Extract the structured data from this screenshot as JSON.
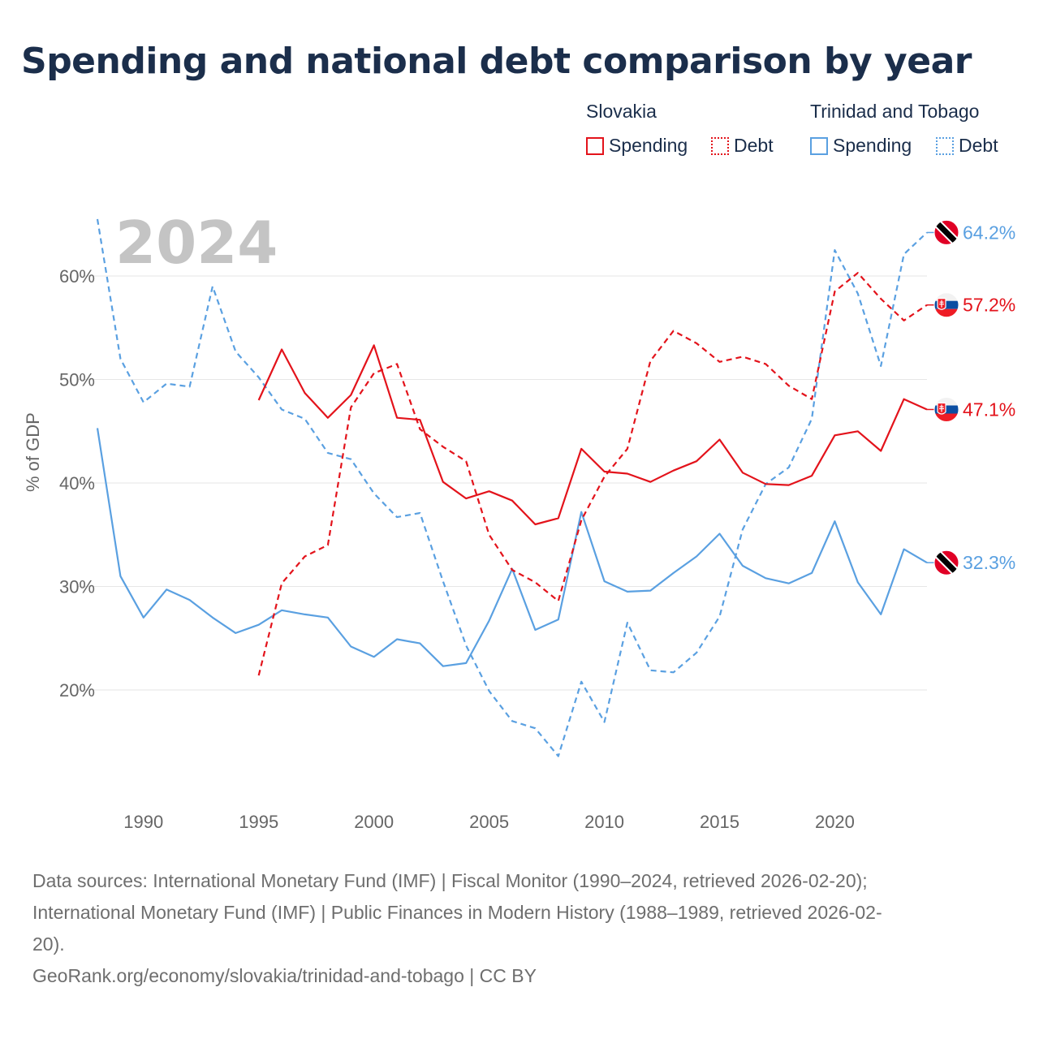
{
  "title": "Spending and national debt comparison by year",
  "legend": {
    "groups": [
      {
        "country": "Slovakia",
        "spending_label": "Spending",
        "debt_label": "Debt"
      },
      {
        "country": "Trinidad and Tobago",
        "spending_label": "Spending",
        "debt_label": "Debt"
      }
    ]
  },
  "colors": {
    "slovakia": "#e3131b",
    "trinidad": "#5aa0e1",
    "grid": "#e6e6e6",
    "year_label": "#c4c4c4",
    "axis_text": "#666666"
  },
  "sources": {
    "line1": "Data sources: International Monetary Fund (IMF) | Fiscal Monitor (1990–2024, retrieved 2026-02-20);",
    "line2": "International Monetary Fund (IMF) | Public Finances in Modern History (1988–1989, retrieved 2026-02-",
    "line3": "20).",
    "credit": "GeoRank.org/economy/slovakia/trinidad-and-tobago | CC BY"
  },
  "chart_data": {
    "type": "line",
    "year_label": "2024",
    "ylabel": "% of GDP",
    "x_ticks": [
      1990,
      1995,
      2000,
      2005,
      2010,
      2015,
      2020
    ],
    "y_ticks": [
      20,
      30,
      40,
      50,
      60
    ],
    "y_tick_labels": [
      "20%",
      "30%",
      "40%",
      "50%",
      "60%"
    ],
    "xlim": [
      1988,
      2024
    ],
    "ylim": [
      10,
      67
    ],
    "series": [
      {
        "name": "Trinidad and Tobago Spending",
        "country": "trinidad",
        "style": "solid",
        "end_label": "32.3%",
        "flag": "trinidad-and-tobago-flag",
        "x": [
          1988,
          1989,
          1990,
          1991,
          1992,
          1993,
          1994,
          1995,
          1996,
          1997,
          1998,
          1999,
          2000,
          2001,
          2002,
          2003,
          2004,
          2005,
          2006,
          2007,
          2008,
          2009,
          2010,
          2011,
          2012,
          2013,
          2014,
          2015,
          2016,
          2017,
          2018,
          2019,
          2020,
          2021,
          2022,
          2023,
          2024
        ],
        "values": [
          45.3,
          31.0,
          27.0,
          29.7,
          28.7,
          27.0,
          25.5,
          26.3,
          27.7,
          27.3,
          27.0,
          24.2,
          23.2,
          24.9,
          24.5,
          22.3,
          22.6,
          26.7,
          31.7,
          25.8,
          26.8,
          37.2,
          30.5,
          29.5,
          29.6,
          31.3,
          32.9,
          35.1,
          32.0,
          30.8,
          30.3,
          31.3,
          36.3,
          30.4,
          27.3,
          33.6,
          32.3
        ]
      },
      {
        "name": "Trinidad and Tobago Debt",
        "country": "trinidad",
        "style": "dashed",
        "end_label": "64.2%",
        "flag": "trinidad-and-tobago-flag",
        "x": [
          1988,
          1989,
          1990,
          1991,
          1992,
          1993,
          1994,
          1995,
          1996,
          1997,
          1998,
          1999,
          2000,
          2001,
          2002,
          2003,
          2004,
          2005,
          2006,
          2007,
          2008,
          2009,
          2010,
          2011,
          2012,
          2013,
          2014,
          2015,
          2016,
          2017,
          2018,
          2019,
          2020,
          2021,
          2022,
          2023,
          2024
        ],
        "values": [
          65.5,
          52.0,
          47.8,
          49.6,
          49.3,
          59.0,
          52.7,
          50.2,
          47.1,
          46.2,
          42.9,
          42.3,
          39.0,
          36.7,
          37.1,
          30.5,
          24.3,
          19.9,
          17.0,
          16.3,
          13.6,
          20.8,
          16.9,
          26.5,
          21.9,
          21.7,
          23.6,
          27.1,
          35.5,
          39.9,
          41.5,
          46.2,
          62.5,
          58.3,
          51.3,
          62.1,
          64.2
        ]
      },
      {
        "name": "Slovakia Spending",
        "country": "slovakia",
        "style": "solid",
        "end_label": "47.1%",
        "flag": "slovakia-flag",
        "x": [
          1995,
          1996,
          1997,
          1998,
          1999,
          2000,
          2001,
          2002,
          2003,
          2004,
          2005,
          2006,
          2007,
          2008,
          2009,
          2010,
          2011,
          2012,
          2013,
          2014,
          2015,
          2016,
          2017,
          2018,
          2019,
          2020,
          2021,
          2022,
          2023,
          2024
        ],
        "values": [
          48.0,
          52.9,
          48.7,
          46.3,
          48.5,
          53.3,
          46.3,
          46.1,
          40.1,
          38.5,
          39.2,
          38.3,
          36.0,
          36.6,
          43.3,
          41.1,
          40.9,
          40.1,
          41.2,
          42.1,
          44.2,
          41.0,
          39.9,
          39.8,
          40.7,
          44.6,
          45.0,
          43.1,
          48.1,
          47.1
        ]
      },
      {
        "name": "Slovakia Debt",
        "country": "slovakia",
        "style": "dashed",
        "end_label": "57.2%",
        "flag": "slovakia-flag",
        "x": [
          1995,
          1996,
          1997,
          1998,
          1999,
          2000,
          2001,
          2002,
          2003,
          2004,
          2005,
          2006,
          2007,
          2008,
          2009,
          2010,
          2011,
          2012,
          2013,
          2014,
          2015,
          2016,
          2017,
          2018,
          2019,
          2020,
          2021,
          2022,
          2023,
          2024
        ],
        "values": [
          21.4,
          30.3,
          32.9,
          34.0,
          47.3,
          50.6,
          51.5,
          45.2,
          43.5,
          42.1,
          35.0,
          31.6,
          30.4,
          28.6,
          36.4,
          40.6,
          43.3,
          51.8,
          54.7,
          53.5,
          51.7,
          52.2,
          51.5,
          49.4,
          48.1,
          58.5,
          60.3,
          57.8,
          55.7,
          57.2
        ]
      }
    ]
  }
}
